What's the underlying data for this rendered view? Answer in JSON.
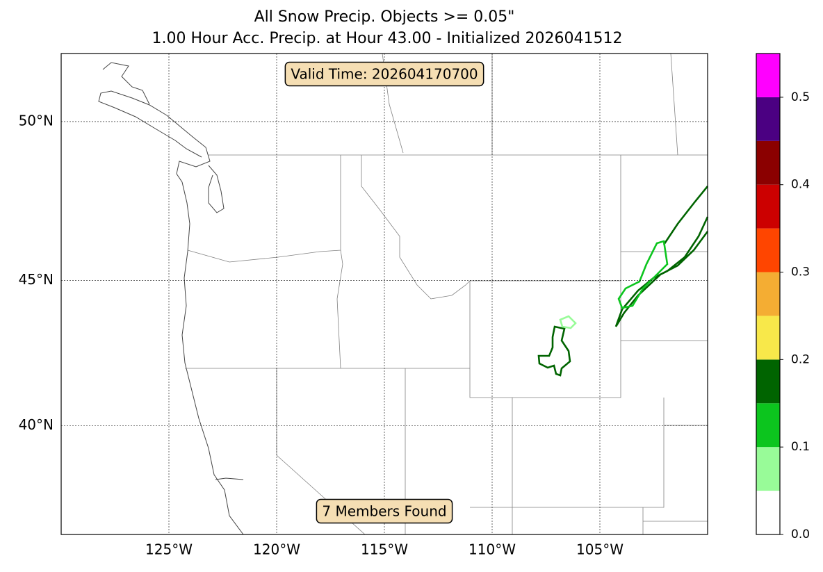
{
  "chart_data": {
    "type": "map",
    "title": [
      "All Snow Precip. Objects >= 0.05\"",
      "1.00 Hour Acc. Precip. at Hour 43.00 - Initialized 2026041512"
    ],
    "annotations": [
      "Valid Time: 202604170700",
      "7 Members Found"
    ],
    "projection": "mercator",
    "xlim": [
      -130,
      -100
    ],
    "ylim": [
      36,
      52
    ],
    "xticks": [
      {
        "value": -125,
        "label": "125°W"
      },
      {
        "value": -120,
        "label": "120°W"
      },
      {
        "value": -115,
        "label": "115°W"
      },
      {
        "value": -110,
        "label": "110°W"
      },
      {
        "value": -105,
        "label": "105°W"
      }
    ],
    "yticks": [
      {
        "value": 40,
        "label": "40°N"
      },
      {
        "value": 45,
        "label": "45°N"
      },
      {
        "value": 50,
        "label": "50°N"
      }
    ],
    "grid": true,
    "colorbar": {
      "bounds": [
        0,
        0.05,
        0.1,
        0.15,
        0.2,
        0.25,
        0.3,
        0.35,
        0.4,
        0.45,
        0.5,
        0.55
      ],
      "colors": [
        "#ffffff",
        "#98fb98",
        "#0cc51e",
        "#006400",
        "#f8e84a",
        "#f4ad33",
        "#ff4500",
        "#cc0000",
        "#8b0000",
        "#4b0082",
        "#ff00ff"
      ],
      "ticks": [
        {
          "value": 0,
          "label": "0.0"
        },
        0.1,
        0.2,
        0.3,
        0.4,
        0.5
      ]
    }
  }
}
